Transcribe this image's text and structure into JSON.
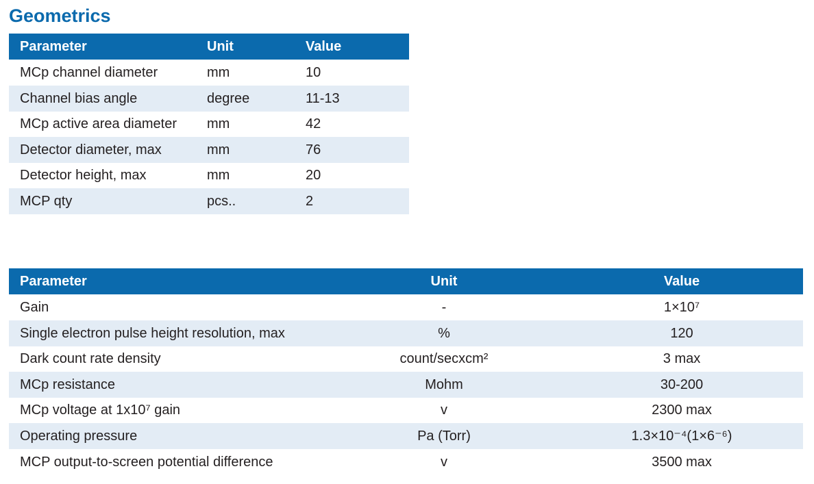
{
  "title": "Geometrics",
  "tables": [
    {
      "headers": [
        "Parameter",
        "Unit",
        "Value"
      ],
      "rows": [
        [
          "MCp channel diameter",
          "mm",
          "10"
        ],
        [
          "Channel bias angle",
          "degree",
          "11-13"
        ],
        [
          "MCp active area diameter",
          "mm",
          "42"
        ],
        [
          "Detector diameter, max",
          "mm",
          "76"
        ],
        [
          "Detector height, max",
          "mm",
          "20"
        ],
        [
          "MCP qty",
          "pcs..",
          "2"
        ]
      ]
    },
    {
      "headers": [
        "Parameter",
        "Unit",
        "Value"
      ],
      "rows": [
        [
          "Gain",
          "-",
          "1×10⁷"
        ],
        [
          "Single electron pulse height resolution, max",
          "%",
          "120"
        ],
        [
          "Dark count rate density",
          "count/secxcm²",
          "3 max"
        ],
        [
          "MCp resistance",
          "Mohm",
          "30-200"
        ],
        [
          "MCp voltage at 1x10⁷  gain",
          "v",
          "2300 max"
        ],
        [
          "Operating pressure",
          "Pa (Torr)",
          "1.3×10⁻⁴(1×6⁻⁶)"
        ],
        [
          "MCP output-to-screen potential difference",
          "v",
          "3500 max"
        ]
      ]
    }
  ]
}
